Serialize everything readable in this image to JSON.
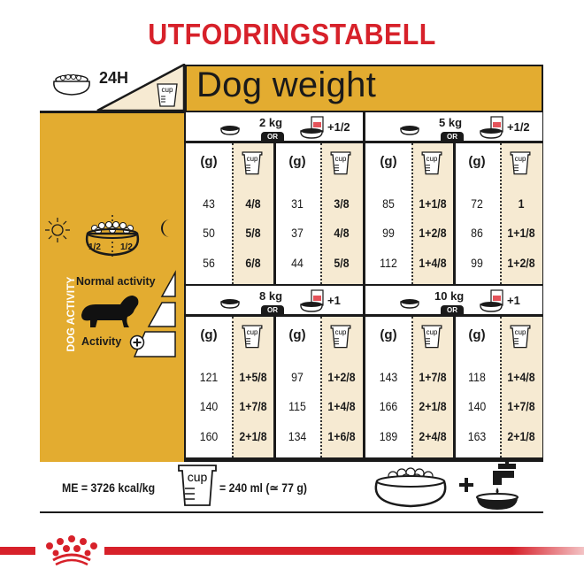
{
  "title": "UTFODRINGSTABELL",
  "header": {
    "period": "24H",
    "heading": "Dog weight",
    "cup_icon_label": "cup"
  },
  "left_panel": {
    "split_left": "1/2",
    "split_right": "1/2",
    "vertical_label": "DOG ACTIVITY",
    "normal_activity": "Normal activity",
    "activity": "Activity"
  },
  "table": {
    "grams_header": "(g)",
    "or_label": "OR",
    "quadrants": [
      {
        "weight": "2 kg",
        "mix_label": "+1/2",
        "dry": {
          "grams": [
            "43",
            "50",
            "56"
          ],
          "cups": [
            "4/8",
            "5/8",
            "6/8"
          ]
        },
        "mixed": {
          "grams": [
            "31",
            "37",
            "44"
          ],
          "cups": [
            "3/8",
            "4/8",
            "5/8"
          ]
        }
      },
      {
        "weight": "5 kg",
        "mix_label": "+1/2",
        "dry": {
          "grams": [
            "85",
            "99",
            "112"
          ],
          "cups": [
            "1+1/8",
            "1+2/8",
            "1+4/8"
          ]
        },
        "mixed": {
          "grams": [
            "72",
            "86",
            "99"
          ],
          "cups": [
            "1",
            "1+1/8",
            "1+2/8"
          ]
        }
      },
      {
        "weight": "8 kg",
        "mix_label": "+1",
        "dry": {
          "grams": [
            "121",
            "140",
            "160"
          ],
          "cups": [
            "1+5/8",
            "1+7/8",
            "2+1/8"
          ]
        },
        "mixed": {
          "grams": [
            "97",
            "115",
            "134"
          ],
          "cups": [
            "1+2/8",
            "1+4/8",
            "1+6/8"
          ]
        }
      },
      {
        "weight": "10 kg",
        "mix_label": "+1",
        "dry": {
          "grams": [
            "143",
            "166",
            "189"
          ],
          "cups": [
            "1+7/8",
            "2+1/8",
            "2+4/8"
          ]
        },
        "mixed": {
          "grams": [
            "118",
            "140",
            "163"
          ],
          "cups": [
            "1+4/8",
            "1+7/8",
            "2+1/8"
          ]
        }
      }
    ]
  },
  "footer": {
    "energy": "ME = 3726 kcal/kg",
    "cup_equivalent": "= 240 ml (≃ 77 g)"
  },
  "colors": {
    "brand_red": "#d7212a",
    "panel_yellow": "#e3ac30",
    "cup_column": "#f6ead2"
  },
  "icons": [
    "bowl-icon",
    "cup-icon",
    "wet-food-pouch-icon",
    "sun-icon",
    "moon-icon",
    "dog-silhouette-icon",
    "plus-circle-icon",
    "water-tap-icon",
    "royal-canin-crown-logo"
  ]
}
